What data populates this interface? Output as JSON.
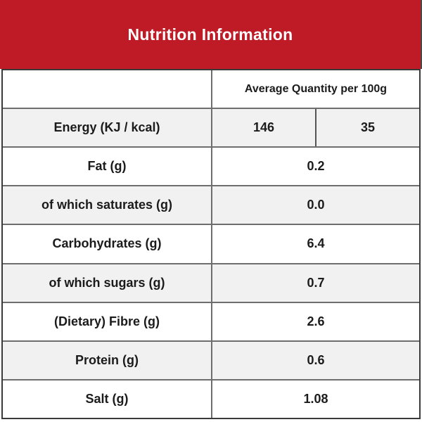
{
  "header": {
    "title": "Nutrition Information",
    "bg_color": "#be1b27",
    "text_color": "#ffffff"
  },
  "table": {
    "column_header": "Average Quantity per 100g",
    "rows": [
      {
        "label": "Energy (KJ / kcal)",
        "values": [
          "146",
          "35"
        ]
      },
      {
        "label": "Fat (g)",
        "value": "0.2"
      },
      {
        "label": "of which saturates (g)",
        "value": "0.0"
      },
      {
        "label": "Carbohydrates (g)",
        "value": "6.4"
      },
      {
        "label": "of which sugars (g)",
        "value": "0.7"
      },
      {
        "label": "(Dietary) Fibre (g)",
        "value": "2.6"
      },
      {
        "label": "Protein (g)",
        "value": "0.6"
      },
      {
        "label": "Salt (g)",
        "value": "1.08"
      }
    ],
    "colors": {
      "alt_row_bg": "#f1f1f1",
      "row_bg": "#ffffff",
      "inner_border": "#6e6e6e",
      "outer_border": "#3a3a3a",
      "text": "#1b1b1b"
    }
  }
}
